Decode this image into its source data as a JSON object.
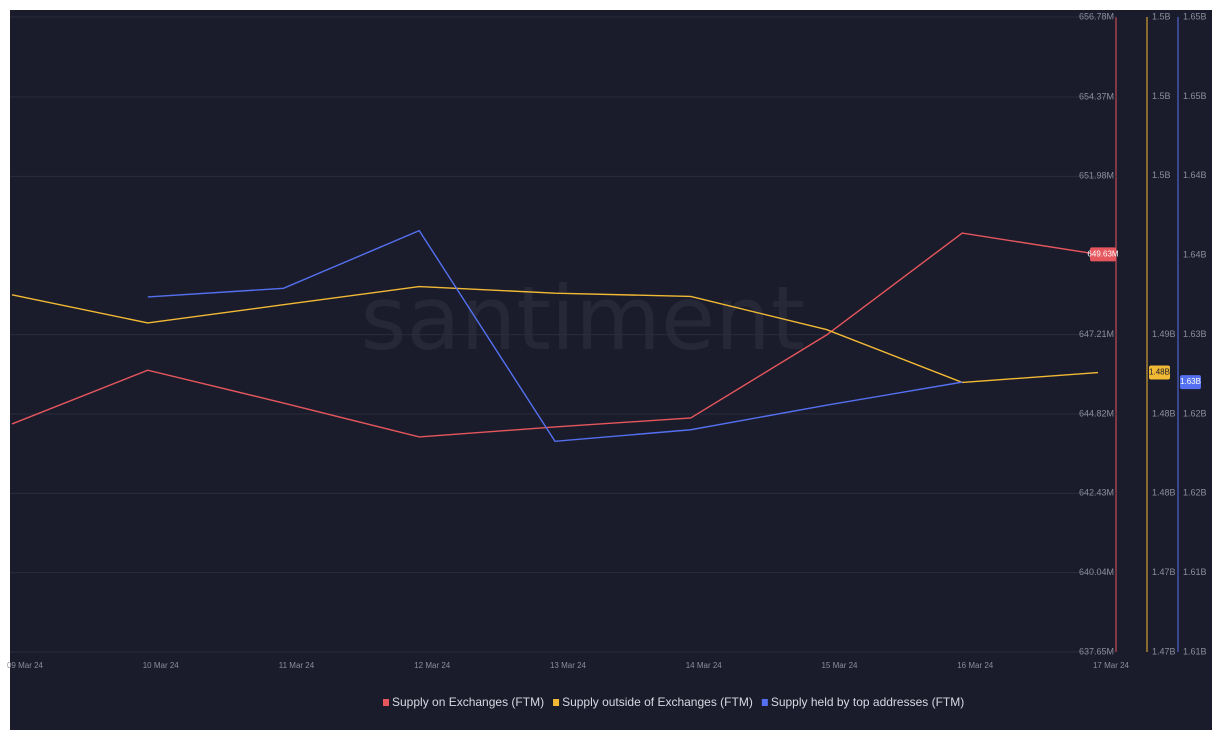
{
  "chart_data": {
    "type": "line",
    "watermark": "santiment",
    "categories": [
      "09 Mar 24",
      "10 Mar 24",
      "11 Mar 24",
      "12 Mar 24",
      "13 Mar 24",
      "14 Mar 24",
      "15 Mar 24",
      "16 Mar 24",
      "17 Mar 24"
    ],
    "ylim": [
      637.65,
      656.78
    ],
    "yticks": [
      {
        "value": 637.65,
        "label": "637.65M"
      },
      {
        "value": 640.04,
        "label": "640.04M"
      },
      {
        "value": 642.43,
        "label": "642.43M"
      },
      {
        "value": 644.82,
        "label": "644.82M"
      },
      {
        "value": 647.21,
        "label": "647.21M"
      },
      {
        "value": 651.98,
        "label": "651.98M"
      },
      {
        "value": 654.37,
        "label": "654.37M"
      },
      {
        "value": 656.78,
        "label": "656.78M"
      }
    ],
    "y2lim": [
      1.4664,
      1.5048
    ],
    "y2ticks": [
      {
        "value": 1.4664,
        "label": "1.47B"
      },
      {
        "value": 1.4712,
        "label": "1.47B"
      },
      {
        "value": 1.476,
        "label": "1.48B"
      },
      {
        "value": 1.4808,
        "label": "1.48B"
      },
      {
        "value": 1.4856,
        "label": "1.49B"
      },
      {
        "value": 1.4952,
        "label": "1.5B"
      },
      {
        "value": 1.5,
        "label": "1.5B"
      },
      {
        "value": 1.5048,
        "label": "1.5B"
      }
    ],
    "y3lim": [
      1.608,
      1.652
    ],
    "y3ticks": [
      {
        "value": 1.608,
        "label": "1.61B"
      },
      {
        "value": 1.6135,
        "label": "1.61B"
      },
      {
        "value": 1.619,
        "label": "1.62B"
      },
      {
        "value": 1.6245,
        "label": "1.62B"
      },
      {
        "value": 1.63,
        "label": "1.63B"
      },
      {
        "value": 1.6355,
        "label": "1.64B"
      },
      {
        "value": 1.641,
        "label": "1.64B"
      },
      {
        "value": 1.6465,
        "label": "1.65B"
      },
      {
        "value": 1.652,
        "label": "1.65B"
      }
    ],
    "grid": true,
    "legend": "bottom",
    "series": [
      {
        "name": "Supply on Exchanges (FTM)",
        "color": "#e5565d",
        "axis": "y",
        "values": [
          644.52,
          646.14,
          645.15,
          644.13,
          644.43,
          644.7,
          647.2,
          650.27,
          649.63
        ],
        "value_labels": [
          null,
          null,
          null,
          null,
          null,
          null,
          null,
          null,
          "649.63M"
        ]
      },
      {
        "name": "Supply outside of Exchanges (FTM)",
        "color": "#f2b935",
        "axis": "y2",
        "values": [
          1.488,
          1.4863,
          1.4874,
          1.4885,
          1.4881,
          1.4879,
          1.4859,
          1.4827,
          1.4833
        ],
        "value_labels": [
          null,
          null,
          null,
          null,
          null,
          null,
          null,
          null,
          "1.48B"
        ]
      },
      {
        "name": "Supply held by top addresses (FTM)",
        "color": "#5470f0",
        "axis": "y3",
        "values": [
          null,
          1.6326,
          1.6332,
          1.6372,
          1.6226,
          1.6234,
          1.6251,
          1.6267,
          null
        ],
        "value_labels": [
          null,
          null,
          null,
          null,
          null,
          null,
          null,
          "1.63B",
          null
        ]
      }
    ]
  }
}
